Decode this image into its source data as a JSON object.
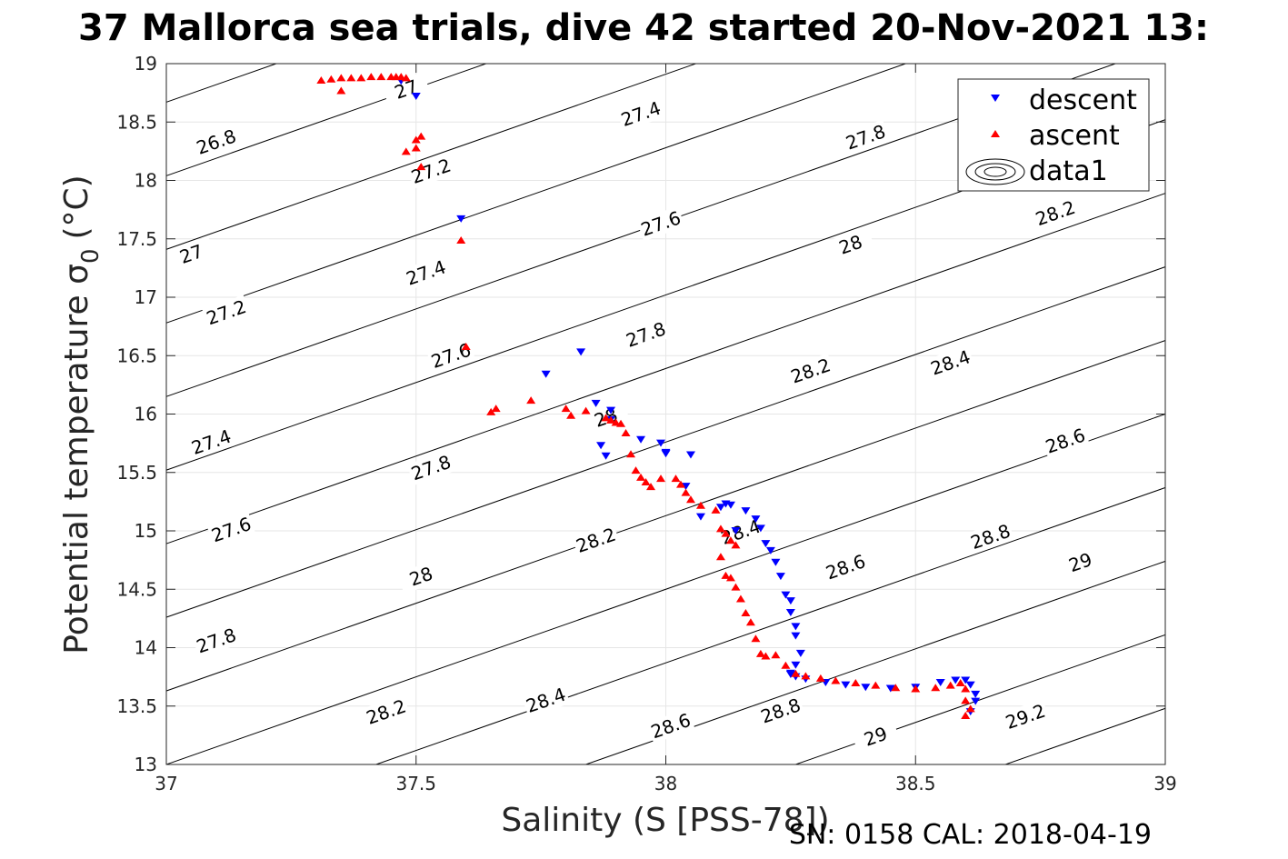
{
  "chart_data": {
    "type": "scatter",
    "title": "37 Mallorca sea trials, dive 42 started 20-Nov-2021 13:",
    "xlabel": "Salinity (S [PSS-78])",
    "ylabel": "Potential temperature σ",
    "ylabel_sub": "0",
    "ylabel_unit": "(°C)",
    "footer": "SN: 0158  CAL: 2018-04-19",
    "xlim": [
      37,
      39
    ],
    "ylim": [
      13,
      19
    ],
    "xticks": [
      37,
      37.5,
      38,
      38.5,
      39
    ],
    "xtick_labels": [
      "37",
      "37.5",
      "38",
      "38.5",
      "39"
    ],
    "yticks": [
      13,
      13.5,
      14,
      14.5,
      15,
      15.5,
      16,
      16.5,
      17,
      17.5,
      18,
      18.5,
      19
    ],
    "ytick_labels": [
      "13",
      "13.5",
      "14",
      "14.5",
      "15",
      "15.5",
      "16",
      "16.5",
      "17",
      "17.5",
      "18",
      "18.5",
      "19"
    ],
    "grid": true,
    "legend_position": "top-right",
    "colors": {
      "descent": "#0000ff",
      "ascent": "#ff0000",
      "contour": "#000000",
      "grid": "#e6e6e6"
    },
    "contour_labels": [
      {
        "text": "26.8",
        "s": 37.1,
        "t": 18.33
      },
      {
        "text": "27",
        "s": 37.48,
        "t": 18.78
      },
      {
        "text": "27",
        "s": 37.05,
        "t": 17.37
      },
      {
        "text": "27.2",
        "s": 37.53,
        "t": 18.08
      },
      {
        "text": "27.2",
        "s": 37.12,
        "t": 16.87
      },
      {
        "text": "27.4",
        "s": 37.95,
        "t": 18.57
      },
      {
        "text": "27.4",
        "s": 37.52,
        "t": 17.21
      },
      {
        "text": "27.4",
        "s": 37.09,
        "t": 15.76
      },
      {
        "text": "27.6",
        "s": 37.99,
        "t": 17.63
      },
      {
        "text": "27.6",
        "s": 37.57,
        "t": 16.5
      },
      {
        "text": "27.6",
        "s": 37.13,
        "t": 15.01
      },
      {
        "text": "27.8",
        "s": 38.4,
        "t": 18.37
      },
      {
        "text": "27.8",
        "s": 37.96,
        "t": 16.68
      },
      {
        "text": "27.8",
        "s": 37.53,
        "t": 15.54
      },
      {
        "text": "27.8",
        "s": 37.1,
        "t": 14.06
      },
      {
        "text": "28",
        "s": 38.37,
        "t": 17.45
      },
      {
        "text": "28",
        "s": 37.88,
        "t": 15.97
      },
      {
        "text": "28",
        "s": 37.51,
        "t": 14.61
      },
      {
        "text": "28.2",
        "s": 38.78,
        "t": 17.72
      },
      {
        "text": "28.2",
        "s": 38.29,
        "t": 16.37
      },
      {
        "text": "28.2",
        "s": 37.86,
        "t": 14.92
      },
      {
        "text": "28.2",
        "s": 37.44,
        "t": 13.45
      },
      {
        "text": "28.4",
        "s": 38.57,
        "t": 16.44
      },
      {
        "text": "28.4",
        "s": 38.15,
        "t": 14.99
      },
      {
        "text": "28.4",
        "s": 37.76,
        "t": 13.55
      },
      {
        "text": "28.6",
        "s": 38.8,
        "t": 15.77
      },
      {
        "text": "28.6",
        "s": 38.36,
        "t": 14.69
      },
      {
        "text": "28.6",
        "s": 38.01,
        "t": 13.33
      },
      {
        "text": "28.8",
        "s": 38.65,
        "t": 14.95
      },
      {
        "text": "28.8",
        "s": 38.23,
        "t": 13.46
      },
      {
        "text": "29",
        "s": 38.83,
        "t": 14.73
      },
      {
        "text": "29",
        "s": 38.42,
        "t": 13.24
      },
      {
        "text": "29.2",
        "s": 38.72,
        "t": 13.41
      }
    ],
    "series": [
      {
        "name": "descent",
        "marker": "triangle-down",
        "color": "#0000ff",
        "x": [
          37.47,
          37.5,
          37.59,
          37.76,
          37.83,
          37.86,
          37.87,
          37.88,
          37.89,
          37.89,
          37.95,
          37.99,
          38.0,
          38.0,
          38.04,
          38.05,
          38.07,
          38.11,
          38.12,
          38.13,
          38.14,
          38.16,
          38.18,
          38.19,
          38.2,
          38.21,
          38.22,
          38.23,
          38.24,
          38.25,
          38.25,
          38.26,
          38.26,
          38.27,
          38.26,
          38.25,
          38.25,
          38.26,
          38.28,
          38.32,
          38.36,
          38.4,
          38.45,
          38.5,
          38.55,
          38.58,
          38.6,
          38.61,
          38.62,
          38.62,
          38.61
        ],
        "y": [
          18.85,
          18.72,
          17.67,
          16.34,
          16.53,
          16.09,
          15.73,
          15.64,
          16.03,
          15.95,
          15.78,
          15.75,
          15.67,
          15.66,
          15.38,
          15.65,
          15.12,
          15.2,
          15.23,
          15.22,
          15.0,
          15.17,
          15.1,
          15.02,
          14.89,
          14.83,
          14.73,
          14.61,
          14.45,
          14.4,
          14.3,
          14.18,
          14.1,
          13.95,
          13.85,
          13.78,
          13.77,
          13.75,
          13.73,
          13.7,
          13.68,
          13.66,
          13.65,
          13.66,
          13.7,
          13.72,
          13.72,
          13.68,
          13.6,
          13.54,
          13.45
        ]
      },
      {
        "name": "ascent",
        "marker": "triangle-up",
        "color": "#ff0000",
        "x": [
          37.31,
          37.33,
          37.35,
          37.37,
          37.39,
          37.41,
          37.43,
          37.45,
          37.46,
          37.47,
          37.48,
          37.35,
          37.48,
          37.5,
          37.51,
          37.51,
          37.5,
          37.59,
          37.6,
          37.65,
          37.66,
          37.73,
          37.8,
          37.81,
          37.84,
          37.88,
          37.89,
          37.9,
          37.91,
          37.92,
          37.93,
          37.94,
          37.95,
          37.96,
          37.97,
          37.99,
          38.02,
          38.03,
          38.04,
          38.05,
          38.07,
          38.1,
          38.11,
          38.12,
          38.13,
          38.14,
          38.11,
          38.12,
          38.13,
          38.14,
          38.15,
          38.16,
          38.17,
          38.18,
          38.19,
          38.2,
          38.22,
          38.24,
          38.26,
          38.28,
          38.31,
          38.34,
          38.38,
          38.42,
          38.46,
          38.5,
          38.54,
          38.57,
          38.59,
          38.6,
          38.6,
          38.61,
          38.6
        ],
        "y": [
          18.86,
          18.87,
          18.88,
          18.88,
          18.88,
          18.89,
          18.89,
          18.89,
          18.89,
          18.89,
          18.88,
          18.77,
          18.25,
          18.35,
          18.38,
          18.12,
          18.28,
          17.49,
          16.58,
          16.02,
          16.05,
          16.12,
          16.05,
          15.99,
          16.03,
          15.97,
          15.95,
          15.93,
          15.92,
          15.84,
          15.66,
          15.52,
          15.46,
          15.42,
          15.38,
          15.45,
          15.45,
          15.4,
          15.33,
          15.27,
          15.22,
          15.18,
          15.02,
          14.98,
          14.92,
          14.88,
          14.78,
          14.62,
          14.6,
          14.52,
          14.42,
          14.3,
          14.22,
          14.08,
          13.95,
          13.93,
          13.94,
          13.85,
          13.78,
          13.76,
          13.74,
          13.72,
          13.7,
          13.68,
          13.66,
          13.65,
          13.66,
          13.68,
          13.7,
          13.65,
          13.55,
          13.48,
          13.42
        ]
      },
      {
        "name": "data1",
        "marker": "contour"
      }
    ]
  }
}
